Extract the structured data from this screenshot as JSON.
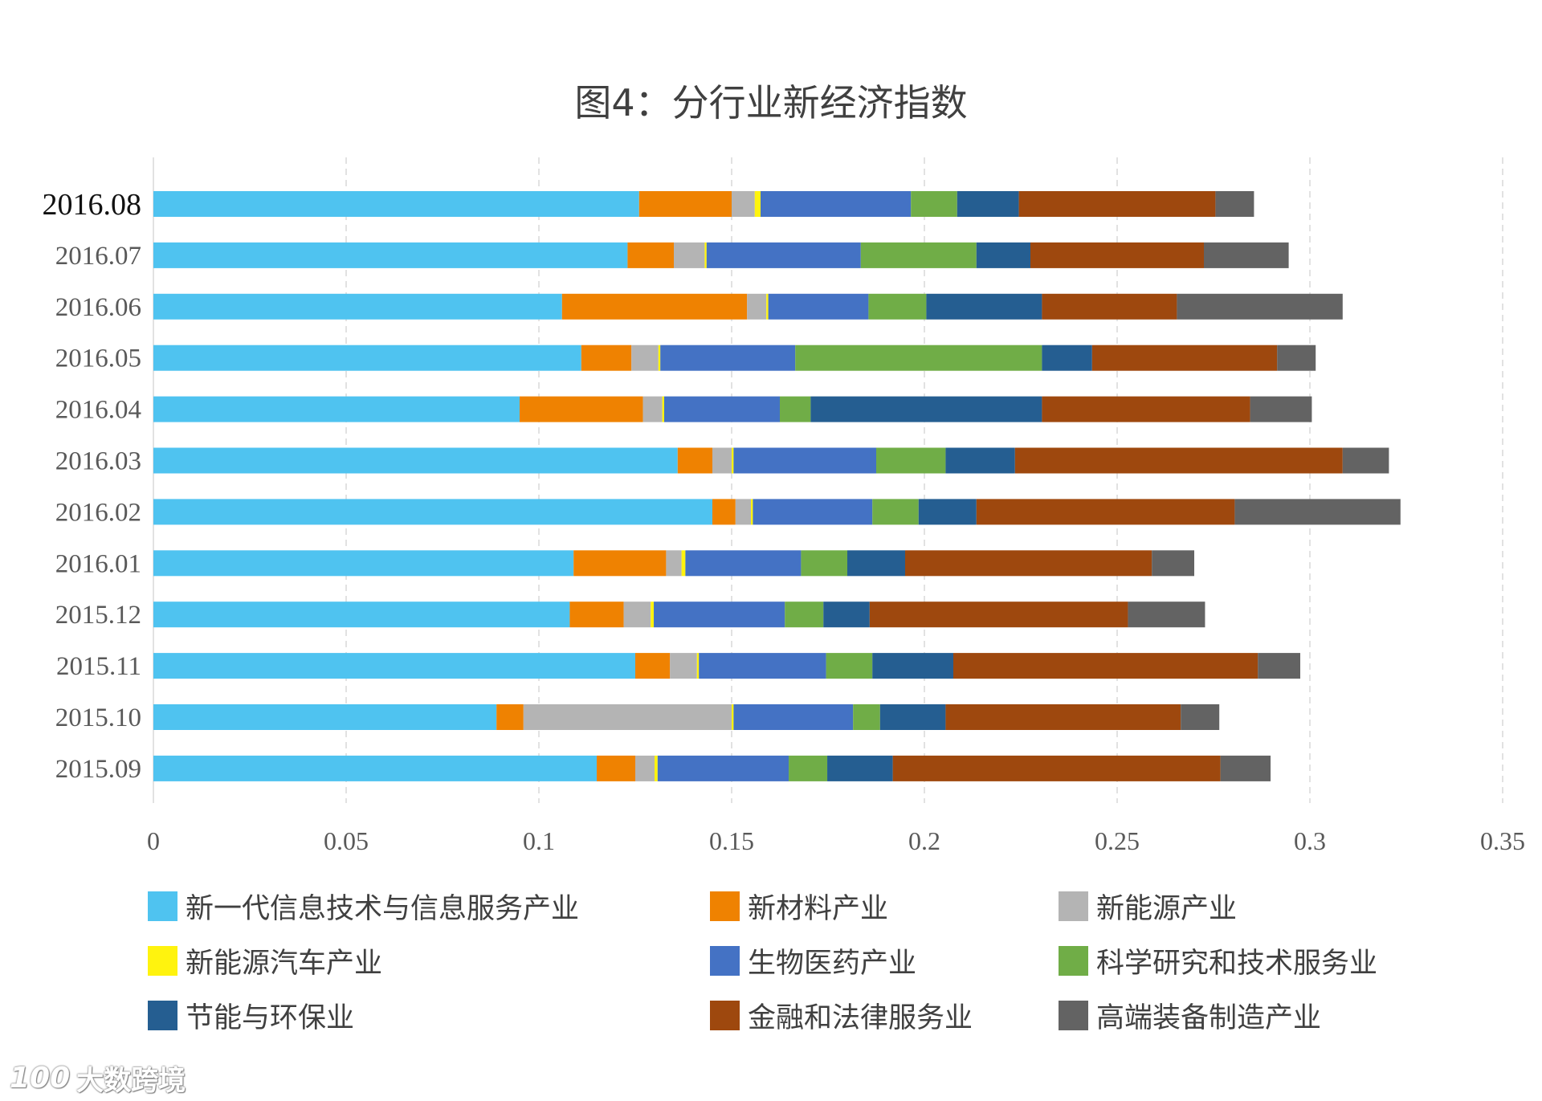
{
  "chart_data": {
    "type": "bar",
    "orientation": "horizontal",
    "stacked": true,
    "title": "图4：分行业新经济指数",
    "xlabel": "",
    "ylabel": "",
    "xlim": [
      0,
      0.35
    ],
    "x_ticks": [
      0,
      0.05,
      0.1,
      0.15,
      0.2,
      0.25,
      0.3,
      0.35
    ],
    "x_tick_labels": [
      "0",
      "0.05",
      "0.1",
      "0.15",
      "0.2",
      "0.25",
      "0.3",
      "0.35"
    ],
    "grid": "vertical dashed",
    "legend_position": "bottom",
    "categories": [
      "2016.08",
      "2016.07",
      "2016.06",
      "2016.05",
      "2016.04",
      "2016.03",
      "2016.02",
      "2016.01",
      "2015.12",
      "2015.11",
      "2015.10",
      "2015.09"
    ],
    "series": [
      {
        "name": "新一代信息技术与信息服务产业",
        "color": "#4fc3f0",
        "values": [
          0.126,
          0.123,
          0.106,
          0.111,
          0.095,
          0.136,
          0.145,
          0.109,
          0.108,
          0.125,
          0.089,
          0.115
        ]
      },
      {
        "name": "新材料产业",
        "color": "#ef8201",
        "values": [
          0.024,
          0.012,
          0.048,
          0.013,
          0.032,
          0.009,
          0.006,
          0.024,
          0.014,
          0.009,
          0.007,
          0.01
        ]
      },
      {
        "name": "新能源产业",
        "color": "#b4b4b4",
        "values": [
          0.006,
          0.008,
          0.005,
          0.007,
          0.005,
          0.005,
          0.004,
          0.004,
          0.007,
          0.007,
          0.054,
          0.005
        ]
      },
      {
        "name": "新能源汽车产业",
        "color": "#fff30e",
        "values": [
          0.0015,
          0.0005,
          0.0005,
          0.0005,
          0.0005,
          0.0005,
          0.0005,
          0.001,
          0.0008,
          0.0005,
          0.0005,
          0.0008
        ]
      },
      {
        "name": "生物医药产业",
        "color": "#4472c4",
        "values": [
          0.039,
          0.04,
          0.026,
          0.035,
          0.03,
          0.037,
          0.031,
          0.03,
          0.034,
          0.033,
          0.031,
          0.034
        ]
      },
      {
        "name": "科学研究和技术服务业",
        "color": "#70ad47",
        "values": [
          0.012,
          0.03,
          0.015,
          0.064,
          0.008,
          0.018,
          0.012,
          0.012,
          0.01,
          0.012,
          0.007,
          0.01
        ]
      },
      {
        "name": "节能与环保业",
        "color": "#255e91",
        "values": [
          0.016,
          0.014,
          0.03,
          0.013,
          0.06,
          0.018,
          0.015,
          0.015,
          0.012,
          0.021,
          0.017,
          0.017
        ]
      },
      {
        "name": "金融和法律服务业",
        "color": "#9e480e",
        "values": [
          0.051,
          0.045,
          0.035,
          0.048,
          0.054,
          0.085,
          0.067,
          0.064,
          0.067,
          0.079,
          0.061,
          0.085
        ]
      },
      {
        "name": "高端装备制造产业",
        "color": "#636363",
        "values": [
          0.01,
          0.022,
          0.043,
          0.01,
          0.016,
          0.012,
          0.043,
          0.011,
          0.02,
          0.011,
          0.01,
          0.013
        ]
      }
    ]
  },
  "watermark": {
    "logo": "100",
    "text": "大数跨境"
  }
}
